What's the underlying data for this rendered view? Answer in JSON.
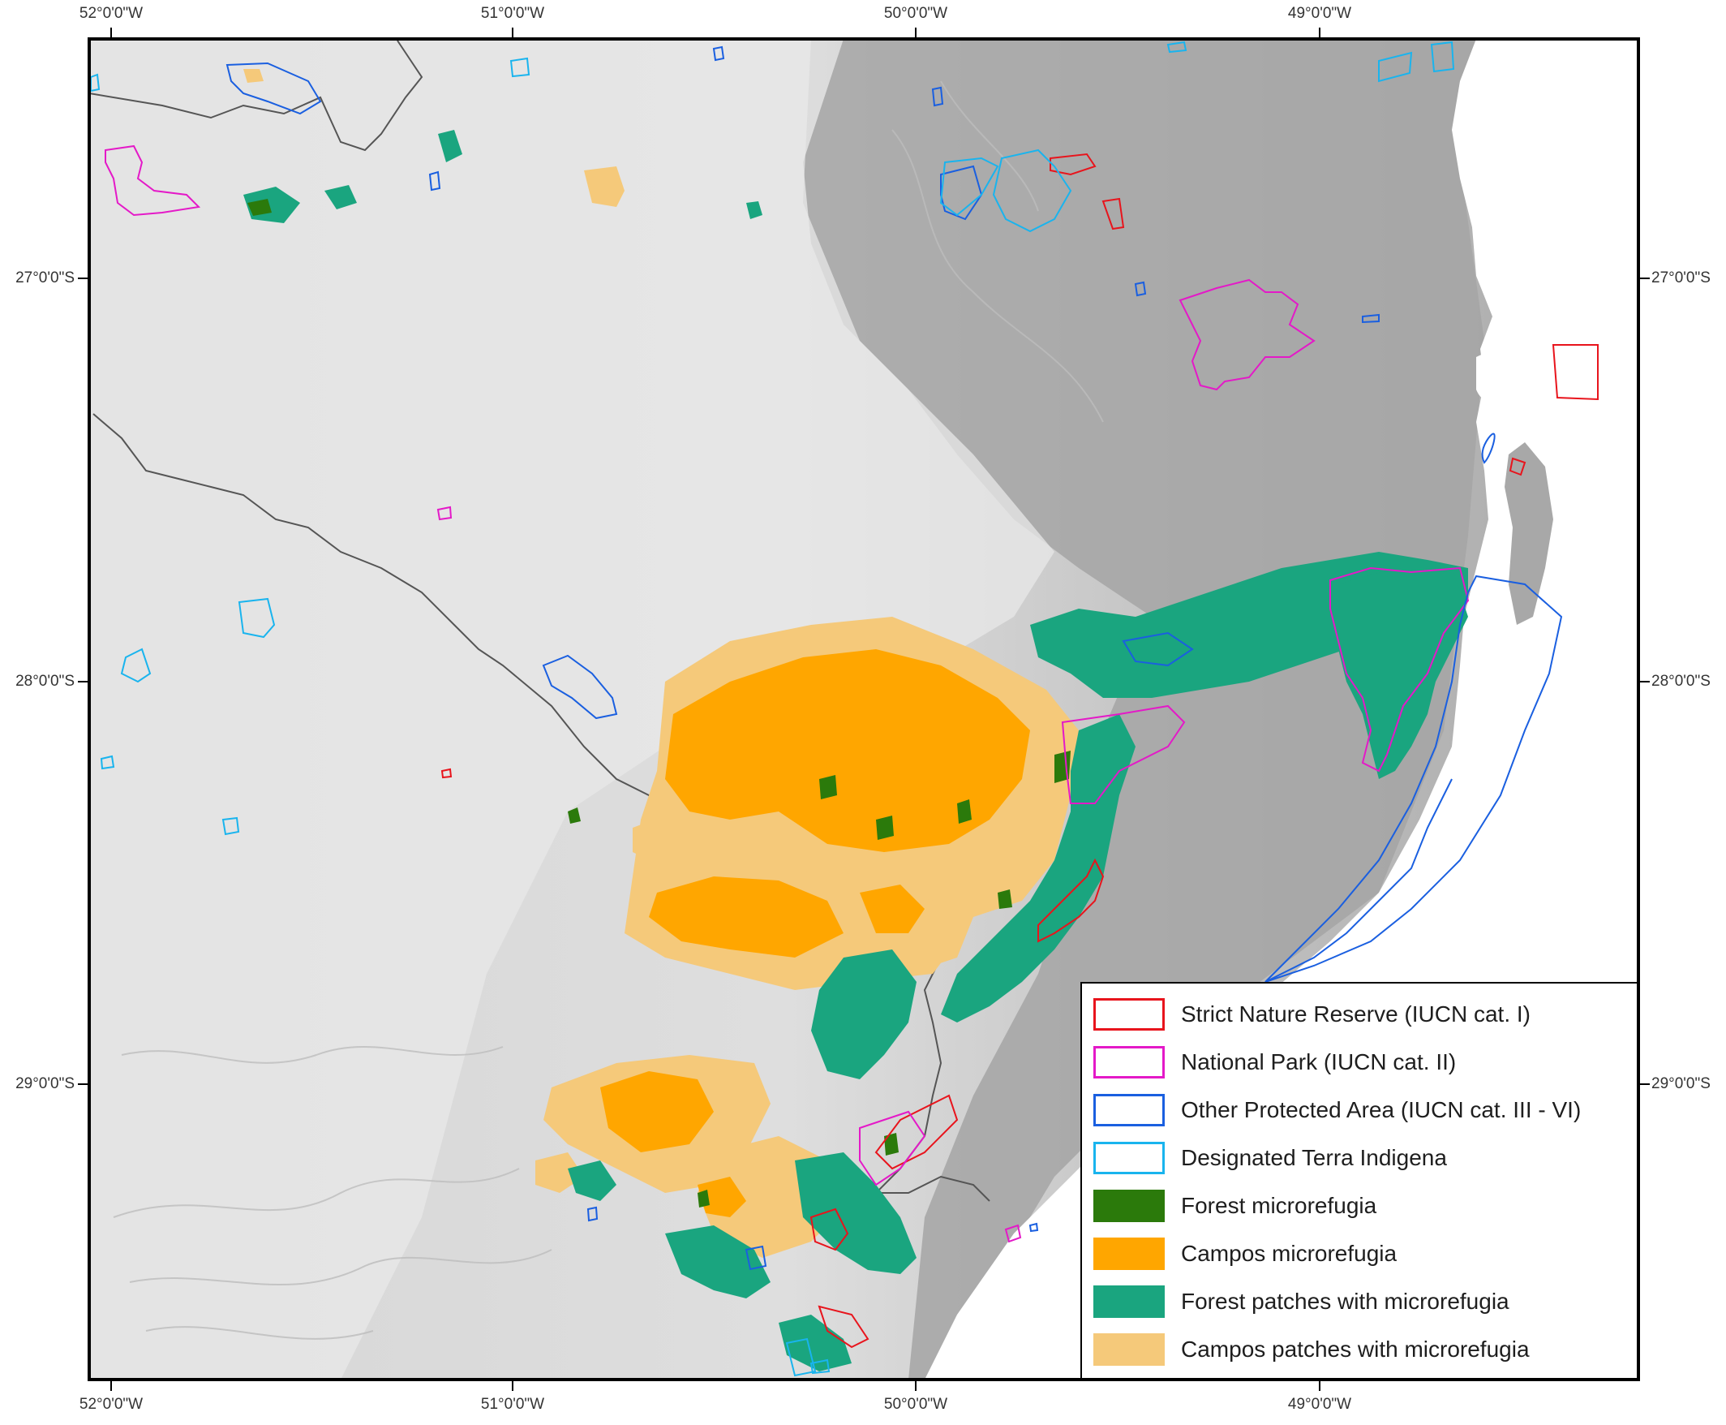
{
  "axes": {
    "longitude_labels": [
      "52°0'0\"W",
      "51°0'0\"W",
      "50°0'0\"W",
      "49°0'0\"W"
    ],
    "latitude_labels": [
      "27°0'0\"S",
      "28°0'0\"S",
      "29°0'0\"S"
    ]
  },
  "legend": {
    "items": [
      {
        "label": "Strict Nature Reserve (IUCN cat. I)",
        "kind": "outline",
        "color": "#e8141c"
      },
      {
        "label": "National Park (IUCN cat. II)",
        "kind": "outline",
        "color": "#e419c8"
      },
      {
        "label": "Other Protected Area (IUCN cat. III - VI)",
        "kind": "outline",
        "color": "#1a5fe0"
      },
      {
        "label": "Designated Terra Indigena",
        "kind": "outline",
        "color": "#19b4ee"
      },
      {
        "label": "Forest microrefugia",
        "kind": "fill",
        "color": "#2b7a0b"
      },
      {
        "label": "Campos microrefugia",
        "kind": "fill",
        "color": "#ffa600"
      },
      {
        "label": "Forest patches with microrefugia",
        "kind": "fill",
        "color": "#1aa57f"
      },
      {
        "label": "Campos patches with microrefugia",
        "kind": "fill",
        "color": "#f5c97a"
      }
    ]
  },
  "colors": {
    "ocean": "#ffffff",
    "highland": "#e6e6e6",
    "lowland": "#a9a9a9",
    "state_border": "#555555"
  }
}
